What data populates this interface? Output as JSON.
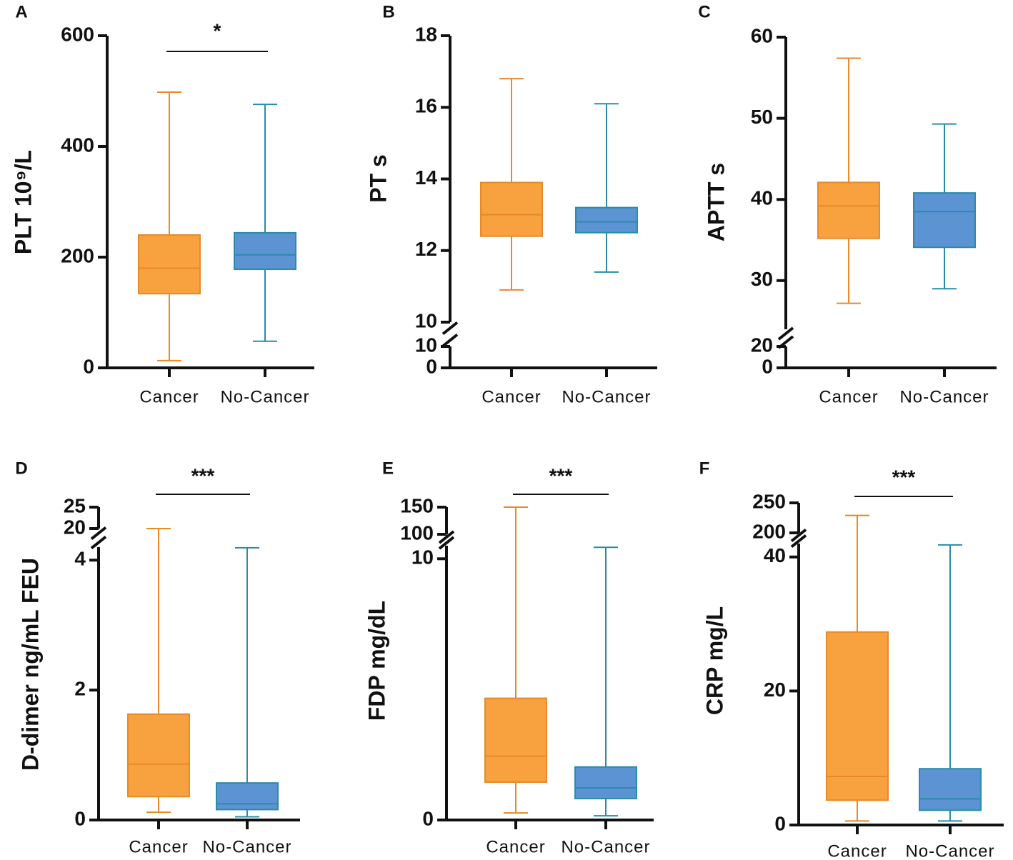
{
  "chart_data": [
    {
      "type": "box",
      "panel": "A",
      "ylabel": "PLT 10⁹/L",
      "categories": [
        "Cancer",
        "No-Cancer"
      ],
      "colors": [
        {
          "fill": "#f8a13f",
          "stroke": "#e8892a"
        },
        {
          "fill": "#5b93d3",
          "stroke": "#2a8ca8"
        }
      ],
      "boxes": [
        {
          "min": 13,
          "q1": 134,
          "median": 180,
          "q3": 240,
          "max": 498
        },
        {
          "min": 48,
          "q1": 178,
          "median": 204,
          "q3": 244,
          "max": 476
        }
      ],
      "y_segments": [
        {
          "ylim": [
            0,
            600
          ],
          "yticks": [
            0,
            200,
            400,
            600
          ]
        }
      ],
      "annotation": "*"
    },
    {
      "type": "box",
      "panel": "B",
      "ylabel": "PT s",
      "categories": [
        "Cancer",
        "No-Cancer"
      ],
      "colors": [
        {
          "fill": "#f8a13f",
          "stroke": "#e8892a"
        },
        {
          "fill": "#5b93d3",
          "stroke": "#2a8ca8"
        }
      ],
      "boxes": [
        {
          "min": 10.9,
          "q1": 12.4,
          "median": 13.0,
          "q3": 13.9,
          "max": 16.8
        },
        {
          "min": 11.4,
          "q1": 12.5,
          "median": 12.8,
          "q3": 13.2,
          "max": 16.1
        }
      ],
      "y_segments": [
        {
          "ylim": [
            0,
            10
          ],
          "yticks": [
            0,
            10
          ]
        },
        {
          "ylim": [
            10,
            18
          ],
          "yticks": [
            10,
            12,
            14,
            16,
            18
          ]
        }
      ]
    },
    {
      "type": "box",
      "panel": "C",
      "ylabel": "APTT s",
      "categories": [
        "Cancer",
        "No-Cancer"
      ],
      "colors": [
        {
          "fill": "#f8a13f",
          "stroke": "#e8892a"
        },
        {
          "fill": "#5b93d3",
          "stroke": "#2a8ca8"
        }
      ],
      "boxes": [
        {
          "min": 27.2,
          "q1": 35.2,
          "median": 39.2,
          "q3": 42.1,
          "max": 57.4
        },
        {
          "min": 29.0,
          "q1": 34.1,
          "median": 38.5,
          "q3": 40.8,
          "max": 49.3
        }
      ],
      "y_segments": [
        {
          "ylim": [
            0,
            20
          ],
          "yticks": [
            0,
            20
          ]
        },
        {
          "ylim": [
            24,
            60
          ],
          "yticks": [
            30,
            40,
            50,
            60
          ]
        }
      ]
    },
    {
      "type": "box",
      "panel": "D",
      "ylabel": "D-dimer ng/mL FEU",
      "categories": [
        "Cancer",
        "No-Cancer"
      ],
      "colors": [
        {
          "fill": "#f8a13f",
          "stroke": "#e8892a"
        },
        {
          "fill": "#5b93d3",
          "stroke": "#2a8ca8"
        }
      ],
      "boxes": [
        {
          "min": 0.12,
          "q1": 0.36,
          "median": 0.86,
          "q3": 1.63,
          "max": 20
        },
        {
          "min": 0.05,
          "q1": 0.16,
          "median": 0.25,
          "q3": 0.57,
          "max": 4.19
        }
      ],
      "y_segments": [
        {
          "ylim": [
            0,
            4.2
          ],
          "yticks": [
            0,
            2,
            4
          ]
        },
        {
          "ylim": [
            20,
            25
          ],
          "yticks": [
            20,
            25
          ]
        }
      ],
      "annotation": "***"
    },
    {
      "type": "box",
      "panel": "E",
      "ylabel": "FDP mg/dL",
      "categories": [
        "Cancer",
        "No-Cancer"
      ],
      "colors": [
        {
          "fill": "#f8a13f",
          "stroke": "#e8892a"
        },
        {
          "fill": "#5b93d3",
          "stroke": "#2a8ca8"
        }
      ],
      "boxes": [
        {
          "min": 0.27,
          "q1": 1.45,
          "median": 2.44,
          "q3": 4.66,
          "max": 150
        },
        {
          "min": 0.16,
          "q1": 0.82,
          "median": 1.23,
          "q3": 2.03,
          "max": 10.44
        }
      ],
      "y_segments": [
        {
          "ylim": [
            0,
            10.5
          ],
          "yticks": [
            0,
            10
          ]
        },
        {
          "ylim": [
            100,
            150
          ],
          "yticks": [
            100,
            150
          ]
        }
      ],
      "annotation": "***"
    },
    {
      "type": "box",
      "panel": "F",
      "ylabel": "CRP mg/L",
      "categories": [
        "Cancer",
        "No-Cancer"
      ],
      "colors": [
        {
          "fill": "#f8a13f",
          "stroke": "#e8892a"
        },
        {
          "fill": "#5b93d3",
          "stroke": "#2a8ca8"
        }
      ],
      "boxes": [
        {
          "min": 0.6,
          "q1": 3.7,
          "median": 7.25,
          "q3": 28.8,
          "max": 229
        },
        {
          "min": 0.6,
          "q1": 2.2,
          "median": 3.9,
          "q3": 8.4,
          "max": 41.8
        }
      ],
      "y_segments": [
        {
          "ylim": [
            0,
            42
          ],
          "yticks": [
            0,
            20,
            40
          ]
        },
        {
          "ylim": [
            200,
            250
          ],
          "yticks": [
            200,
            250
          ]
        }
      ],
      "annotation": "***"
    }
  ]
}
